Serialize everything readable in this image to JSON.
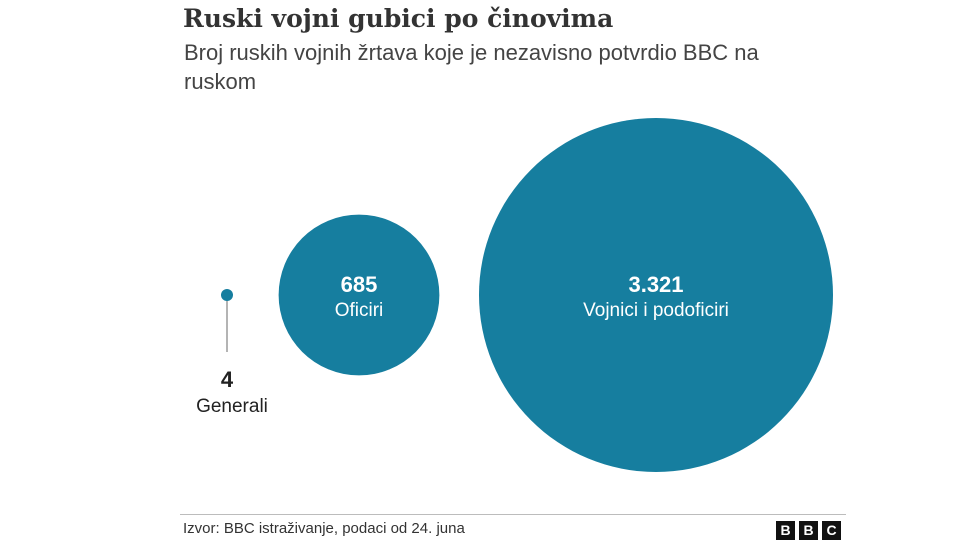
{
  "header": {
    "title": "Ruski vojni gubici po činovima",
    "subtitle": "Broj ruskih vojnih žrtava koje je nezavisno potvrdio BBC na ruskom"
  },
  "footer": {
    "source": "Izvor: BBC istraživanje, podaci od 24. juna",
    "logo_letters": [
      "B",
      "B",
      "C"
    ]
  },
  "colors": {
    "bubble": "#167e9f",
    "label_light": "#ffffff",
    "label_dark": "#222222",
    "pin_line": "#9a9a9a"
  },
  "chart_data": {
    "type": "bubble",
    "items": [
      {
        "label": "Generali",
        "value": 4,
        "value_text": "4"
      },
      {
        "label": "Oficiri",
        "value": 685,
        "value_text": "685"
      },
      {
        "label": "Vojnici i podoficiri",
        "value": 3321,
        "value_text": "3.321"
      }
    ]
  }
}
